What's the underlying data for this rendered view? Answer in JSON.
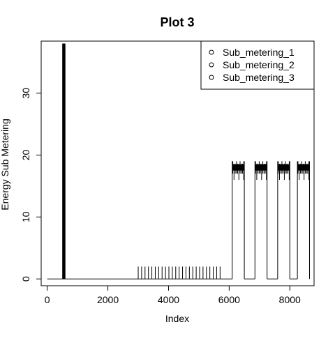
{
  "chart_data": {
    "type": "line",
    "title": "Plot 3",
    "xlabel": "Index",
    "ylabel": "Energy Sub Metering",
    "xlim": [
      -200,
      8800
    ],
    "ylim": [
      -1.1,
      38.4
    ],
    "x_ticks": [
      0,
      2000,
      4000,
      6000,
      8000
    ],
    "x_tick_labels": [
      "0",
      "2000",
      "4000",
      "6000",
      "8000"
    ],
    "y_ticks": [
      0,
      10,
      20,
      30
    ],
    "y_tick_labels": [
      "0",
      "10",
      "20",
      "30"
    ],
    "grid": false,
    "legend": {
      "position": "top-right",
      "boxed": true,
      "marker": "open-circle",
      "entries": [
        "Sub_metering_1",
        "Sub_metering_2",
        "Sub_metering_3"
      ]
    },
    "series_color": "#000000",
    "segments": [
      {
        "x0": 0,
        "x1": 500,
        "level": 0,
        "pattern": "flat"
      },
      {
        "x0": 500,
        "x1": 600,
        "level": 38,
        "pattern": "dense"
      },
      {
        "x0": 600,
        "x1": 3000,
        "level": 0,
        "pattern": "flat"
      },
      {
        "x0": 3000,
        "x1": 5700,
        "level": 2,
        "pattern": "spikes",
        "count": 25
      },
      {
        "x0": 5700,
        "x1": 6100,
        "level": 0,
        "pattern": "flat"
      },
      {
        "x0": 6100,
        "x1": 6500,
        "level": 18,
        "pattern": "band",
        "peak": 19
      },
      {
        "x0": 6500,
        "x1": 6850,
        "level": 0,
        "pattern": "flat"
      },
      {
        "x0": 6850,
        "x1": 7250,
        "level": 18,
        "pattern": "band",
        "peak": 19
      },
      {
        "x0": 7250,
        "x1": 7600,
        "level": 0,
        "pattern": "flat"
      },
      {
        "x0": 7600,
        "x1": 8000,
        "level": 18,
        "pattern": "band",
        "peak": 19
      },
      {
        "x0": 8000,
        "x1": 8250,
        "level": 0,
        "pattern": "flat"
      },
      {
        "x0": 8250,
        "x1": 8650,
        "level": 18,
        "pattern": "band",
        "peak": 19
      }
    ]
  }
}
